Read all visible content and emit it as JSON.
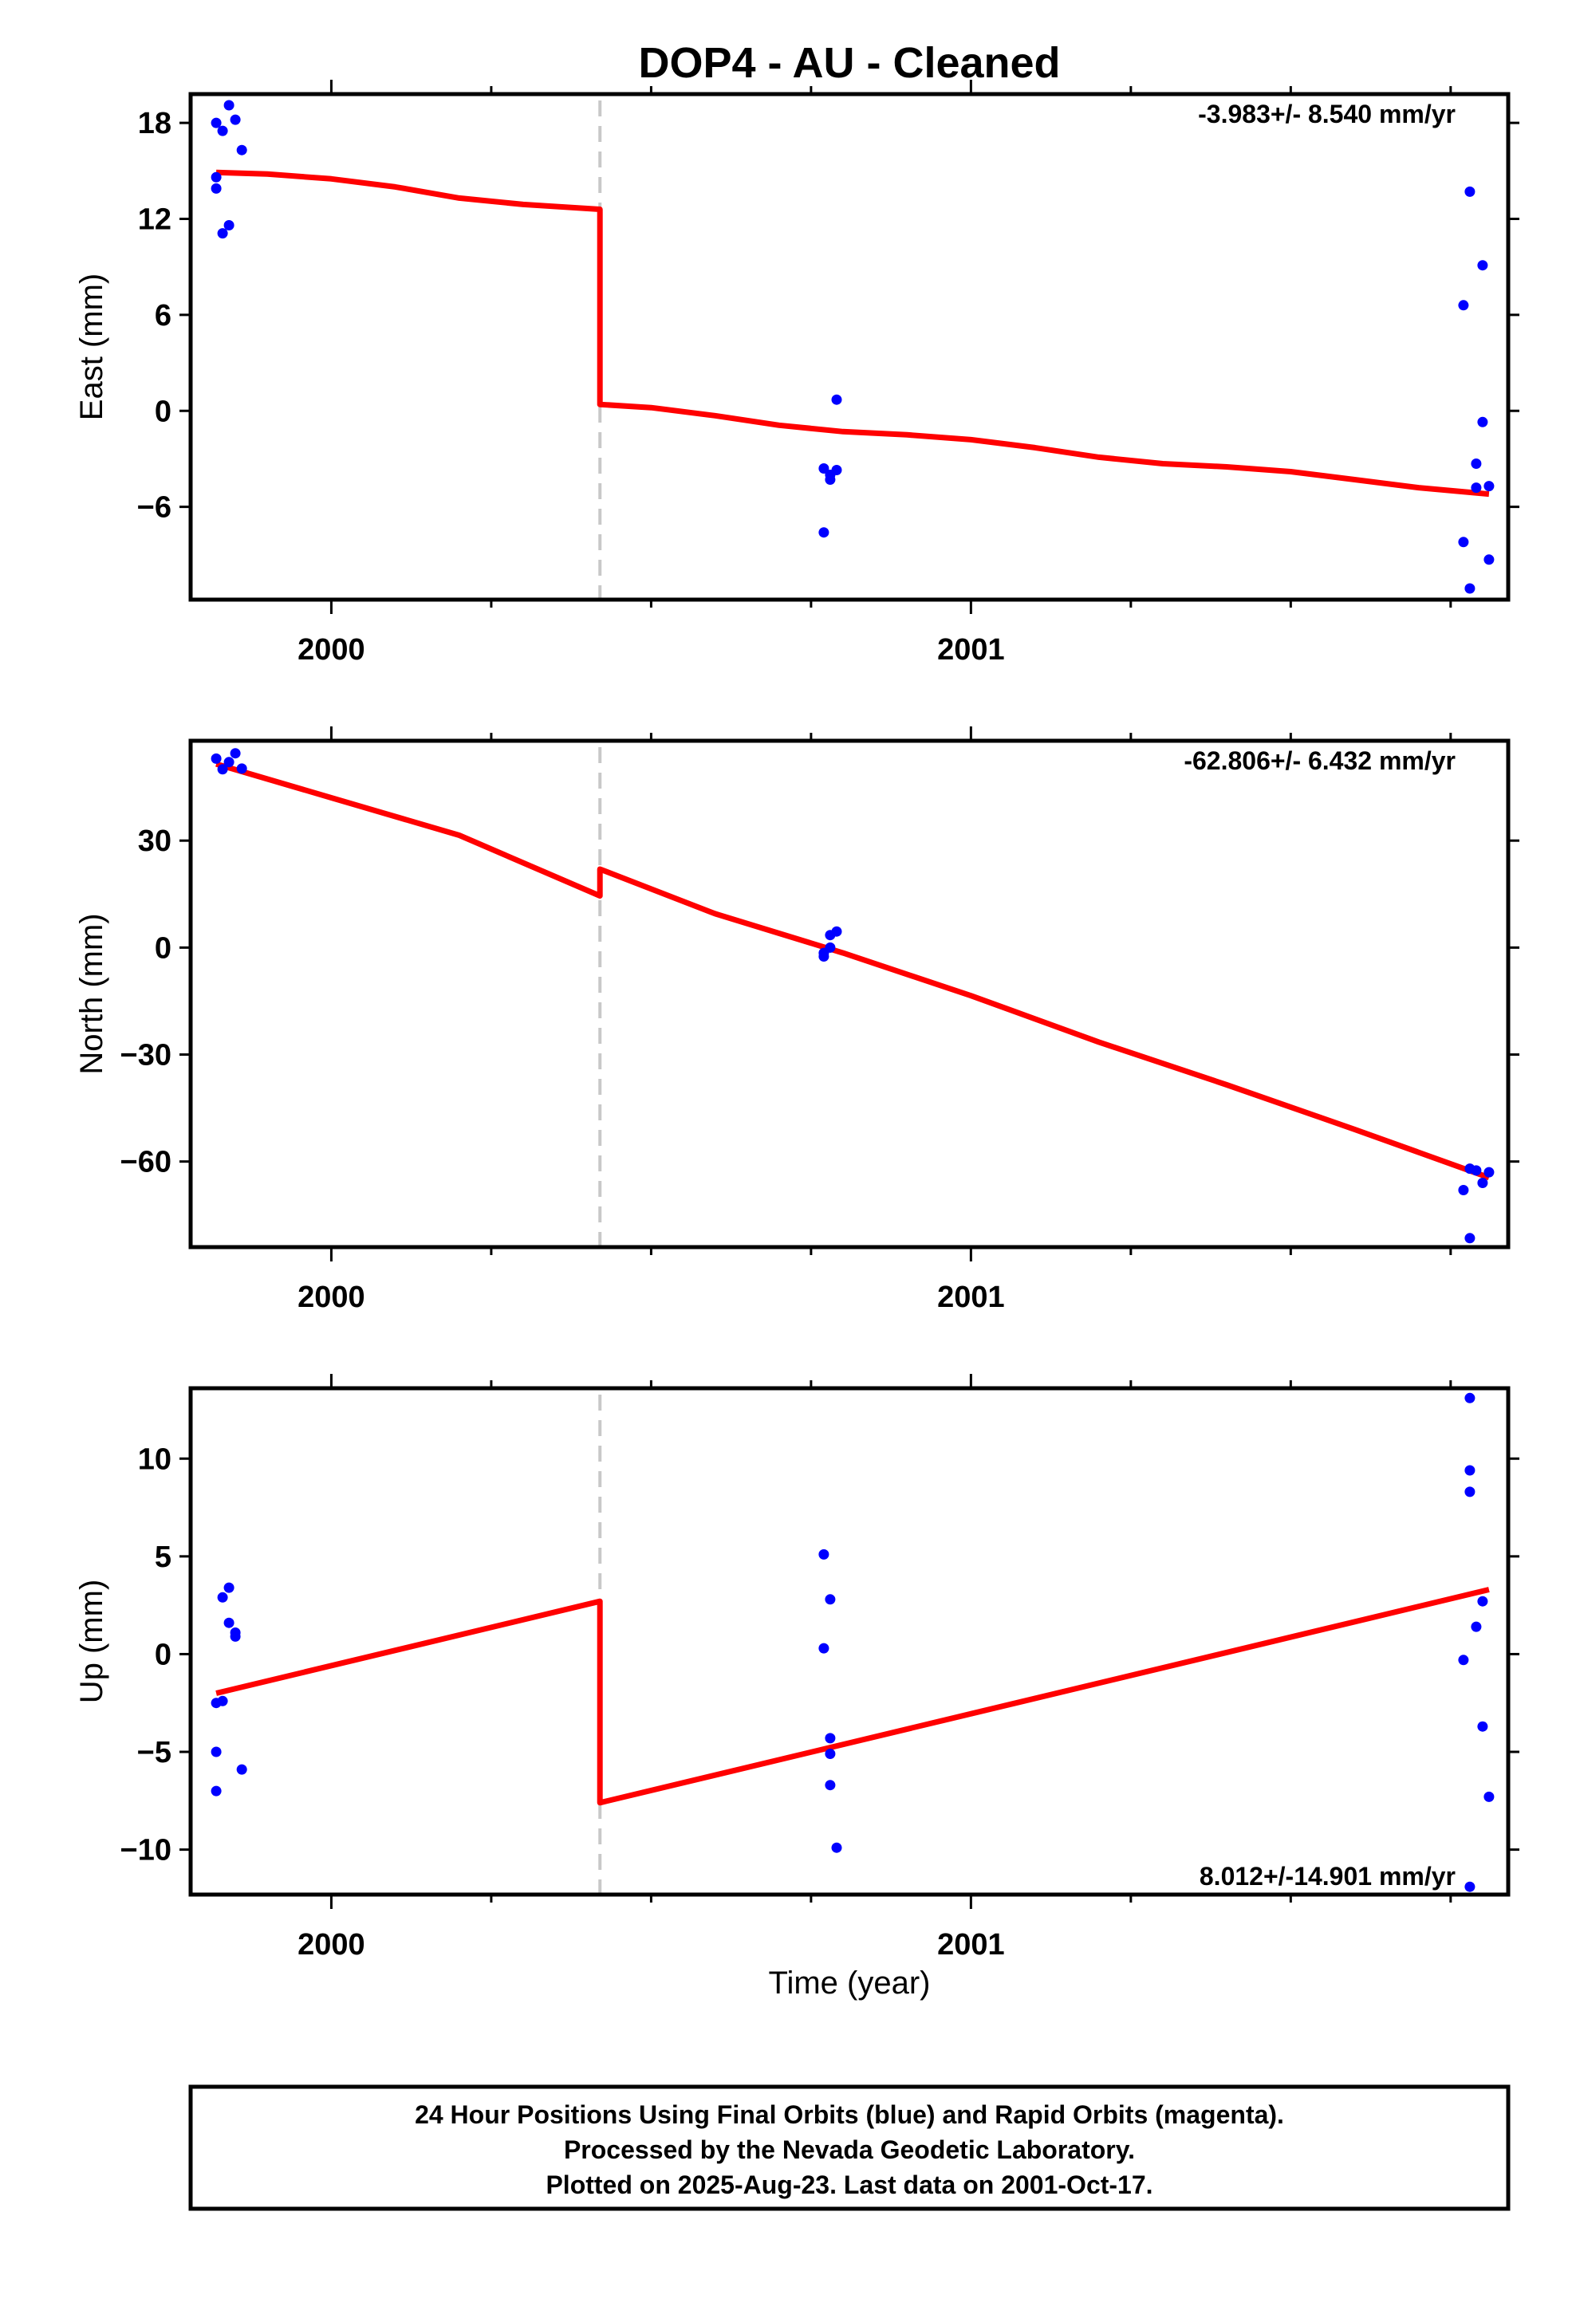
{
  "chart_data": {
    "title": "DOP4  - AU - Cleaned",
    "type": "scatter",
    "x_range": [
      1999.78,
      2001.84
    ],
    "x_ticks": [
      2000,
      2001
    ],
    "x_minor_ticks": [
      2000.25,
      2000.5,
      2000.75,
      2001.25,
      2001.5,
      2001.75
    ],
    "xlabel": "Time (year)",
    "offset_epoch": 2000.42,
    "colors": {
      "data": "#0000ff",
      "fit": "#ff0000",
      "offset": "#c8c8c8",
      "frame": "#000000"
    },
    "panels": [
      {
        "name": "east",
        "ylabel": "East (mm)",
        "ylim": [
          -11.8,
          19.8
        ],
        "yticks": [
          18,
          12,
          6,
          0,
          -6
        ],
        "rate_text": "-3.983+/- 8.540 mm/yr",
        "rate_position": "top-right",
        "points": [
          [
            1999.82,
            18.0
          ],
          [
            1999.84,
            19.1
          ],
          [
            1999.83,
            17.5
          ],
          [
            1999.85,
            18.2
          ],
          [
            1999.82,
            14.6
          ],
          [
            1999.82,
            13.9
          ],
          [
            1999.86,
            16.3
          ],
          [
            1999.84,
            11.6
          ],
          [
            1999.83,
            11.1
          ],
          [
            2001.8,
            9.1
          ],
          [
            2000.77,
            -3.6
          ],
          [
            2000.79,
            -3.7
          ],
          [
            2000.78,
            -4.0
          ],
          [
            2000.79,
            0.7
          ],
          [
            2000.78,
            -4.3
          ],
          [
            2000.77,
            -7.6
          ],
          [
            2001.78,
            13.7
          ],
          [
            2001.77,
            6.6
          ],
          [
            2001.8,
            -0.7
          ],
          [
            2001.79,
            -3.3
          ],
          [
            2001.79,
            -4.8
          ],
          [
            2001.81,
            -4.7
          ],
          [
            2001.77,
            -8.2
          ],
          [
            2001.81,
            -9.3
          ],
          [
            2001.78,
            -11.1
          ]
        ],
        "fit": [
          [
            1999.82,
            14.9
          ],
          [
            1999.9,
            14.8
          ],
          [
            2000.0,
            14.5
          ],
          [
            2000.1,
            14.0
          ],
          [
            2000.2,
            13.3
          ],
          [
            2000.3,
            12.9
          ],
          [
            2000.42,
            12.6
          ],
          [
            2000.42,
            0.4
          ],
          [
            2000.5,
            0.2
          ],
          [
            2000.6,
            -0.3
          ],
          [
            2000.7,
            -0.9
          ],
          [
            2000.8,
            -1.3
          ],
          [
            2000.9,
            -1.5
          ],
          [
            2001.0,
            -1.8
          ],
          [
            2001.1,
            -2.3
          ],
          [
            2001.2,
            -2.9
          ],
          [
            2001.3,
            -3.3
          ],
          [
            2001.4,
            -3.5
          ],
          [
            2001.5,
            -3.8
          ],
          [
            2001.6,
            -4.3
          ],
          [
            2001.7,
            -4.8
          ],
          [
            2001.81,
            -5.2
          ]
        ]
      },
      {
        "name": "north",
        "ylabel": "North (mm)",
        "ylim": [
          -84.0,
          58.0
        ],
        "yticks": [
          30,
          0,
          -30,
          -60
        ],
        "rate_text": "-62.806+/- 6.432 mm/yr",
        "rate_position": "top-right",
        "points": [
          [
            1999.82,
            53.0
          ],
          [
            1999.84,
            52.0
          ],
          [
            1999.85,
            54.5
          ],
          [
            1999.83,
            50.0
          ],
          [
            1999.86,
            50.2
          ],
          [
            2000.77,
            -1.5
          ],
          [
            2000.78,
            3.5
          ],
          [
            2000.78,
            0.0
          ],
          [
            2000.79,
            4.5
          ],
          [
            2000.77,
            -2.5
          ],
          [
            2001.77,
            -68.0
          ],
          [
            2001.79,
            -62.5
          ],
          [
            2001.8,
            -66.0
          ],
          [
            2001.81,
            -63.0
          ],
          [
            2001.78,
            -81.5
          ],
          [
            2001.78,
            -62.0
          ]
        ],
        "fit": [
          [
            1999.82,
            51.5
          ],
          [
            2000.0,
            42.0
          ],
          [
            2000.2,
            31.5
          ],
          [
            2000.42,
            14.5
          ],
          [
            2000.42,
            22.0
          ],
          [
            2000.6,
            9.5
          ],
          [
            2000.8,
            -1.5
          ],
          [
            2001.0,
            -13.5
          ],
          [
            2001.2,
            -26.5
          ],
          [
            2001.4,
            -38.5
          ],
          [
            2001.6,
            -51.0
          ],
          [
            2001.81,
            -64.5
          ]
        ]
      },
      {
        "name": "up",
        "ylabel": "Up (mm)",
        "ylim": [
          -12.3,
          13.6
        ],
        "yticks": [
          10,
          5,
          0,
          -5,
          -10
        ],
        "rate_text": "8.012+/-14.901 mm/yr",
        "rate_position": "bottom-right",
        "points": [
          [
            1999.84,
            3.4
          ],
          [
            1999.83,
            2.9
          ],
          [
            1999.84,
            1.6
          ],
          [
            1999.85,
            1.1
          ],
          [
            1999.85,
            0.9
          ],
          [
            1999.82,
            -2.5
          ],
          [
            1999.83,
            -2.4
          ],
          [
            1999.82,
            -5.0
          ],
          [
            1999.86,
            -5.9
          ],
          [
            1999.82,
            -7.0
          ],
          [
            2000.77,
            5.1
          ],
          [
            2000.78,
            2.8
          ],
          [
            2000.77,
            0.3
          ],
          [
            2000.78,
            -4.3
          ],
          [
            2000.78,
            -5.1
          ],
          [
            2000.78,
            -6.7
          ],
          [
            2000.79,
            -9.9
          ],
          [
            2001.78,
            13.1
          ],
          [
            2001.78,
            9.4
          ],
          [
            2001.78,
            8.3
          ],
          [
            2001.8,
            2.7
          ],
          [
            2001.79,
            1.4
          ],
          [
            2001.77,
            -0.3
          ],
          [
            2001.8,
            -3.7
          ],
          [
            2001.81,
            -7.3
          ],
          [
            2001.78,
            -11.9
          ]
        ],
        "fit": [
          [
            1999.82,
            -2.0
          ],
          [
            2000.42,
            2.7
          ],
          [
            2000.42,
            -7.6
          ],
          [
            2001.81,
            3.3
          ]
        ]
      }
    ]
  },
  "footer": {
    "line1": "24 Hour Positions Using Final Orbits (blue) and Rapid Orbits (magenta).",
    "line2": "Processed by the Nevada Geodetic Laboratory.",
    "line3": "Plotted on 2025-Aug-23. Last data on 2001-Oct-17."
  }
}
